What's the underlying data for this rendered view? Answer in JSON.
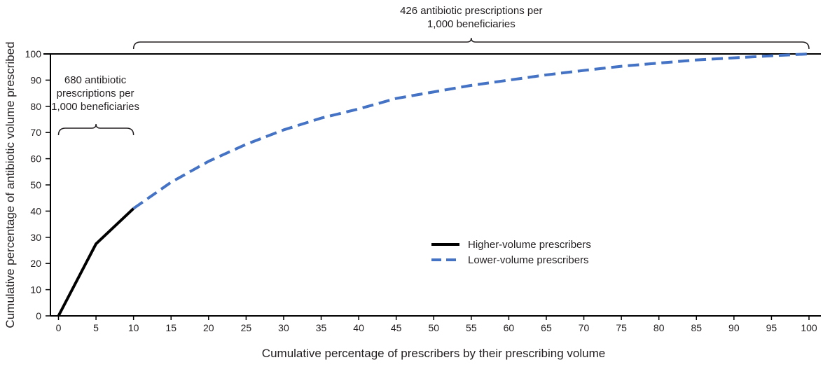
{
  "chart_data": {
    "type": "line",
    "title": "",
    "xlabel": "Cumulative percentage of prescribers by their prescribing volume",
    "ylabel": "Cumulative percentage of antibiotic volume prescribed",
    "xlim": [
      0,
      100
    ],
    "ylim": [
      0,
      100
    ],
    "xticks": [
      0,
      5,
      10,
      15,
      20,
      25,
      30,
      35,
      40,
      45,
      50,
      55,
      60,
      65,
      70,
      75,
      80,
      85,
      90,
      95,
      100
    ],
    "yticks": [
      0,
      10,
      20,
      30,
      40,
      50,
      60,
      70,
      80,
      90,
      100
    ],
    "grid": false,
    "legend_position": "center-right",
    "series": [
      {
        "name": "Higher-volume prescribers",
        "color": "#000000",
        "style": "solid",
        "x": [
          0,
          5,
          10
        ],
        "y": [
          0,
          27.5,
          41
        ]
      },
      {
        "name": "Lower-volume prescribers",
        "color": "#4472c4",
        "style": "dashed",
        "x": [
          10,
          15,
          20,
          25,
          30,
          35,
          40,
          45,
          50,
          55,
          60,
          65,
          70,
          75,
          80,
          85,
          90,
          95,
          100
        ],
        "y": [
          41,
          51,
          59,
          65.5,
          71,
          75.5,
          79,
          83,
          85.5,
          88,
          90,
          92,
          93.7,
          95.3,
          96.5,
          97.7,
          98.5,
          99.3,
          100
        ]
      }
    ],
    "annotations": [
      {
        "text_lines": [
          "680 antibiotic",
          "prescriptions per",
          "1,000 beneficiaries"
        ],
        "x_range": [
          0,
          10
        ]
      },
      {
        "text_lines": [
          "426 antibiotic prescriptions per",
          "1,000 beneficiaries"
        ],
        "x_range": [
          10,
          100
        ]
      }
    ]
  }
}
